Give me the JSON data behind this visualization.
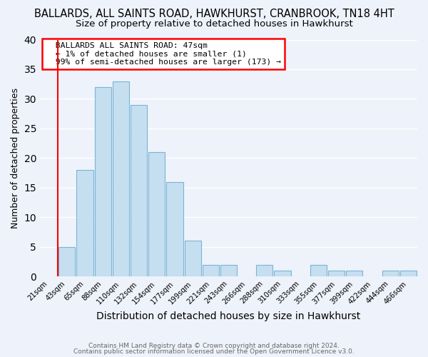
{
  "title": "BALLARDS, ALL SAINTS ROAD, HAWKHURST, CRANBROOK, TN18 4HT",
  "subtitle": "Size of property relative to detached houses in Hawkhurst",
  "xlabel": "Distribution of detached houses by size in Hawkhurst",
  "ylabel": "Number of detached properties",
  "bin_labels": [
    "21sqm",
    "43sqm",
    "65sqm",
    "88sqm",
    "110sqm",
    "132sqm",
    "154sqm",
    "177sqm",
    "199sqm",
    "221sqm",
    "243sqm",
    "266sqm",
    "288sqm",
    "310sqm",
    "333sqm",
    "355sqm",
    "377sqm",
    "399sqm",
    "422sqm",
    "444sqm",
    "466sqm"
  ],
  "bar_heights": [
    0,
    5,
    18,
    32,
    33,
    29,
    21,
    16,
    6,
    2,
    2,
    0,
    2,
    1,
    0,
    2,
    1,
    1,
    0,
    1,
    1
  ],
  "bar_color": "#c5dff0",
  "bar_edge_color": "#7ab4d4",
  "ylim": [
    0,
    40
  ],
  "yticks": [
    0,
    5,
    10,
    15,
    20,
    25,
    30,
    35,
    40
  ],
  "red_line_bin_index": 1,
  "annotation_title": "BALLARDS ALL SAINTS ROAD: 47sqm",
  "annotation_line1": "← 1% of detached houses are smaller (1)",
  "annotation_line2": "99% of semi-detached houses are larger (173) →",
  "footer_line1": "Contains HM Land Registry data © Crown copyright and database right 2024.",
  "footer_line2": "Contains public sector information licensed under the Open Government Licence v3.0.",
  "background_color": "#eef2fb",
  "grid_color": "#ffffff",
  "title_fontsize": 10.5,
  "subtitle_fontsize": 9.5,
  "ylabel_fontsize": 9,
  "xlabel_fontsize": 10
}
